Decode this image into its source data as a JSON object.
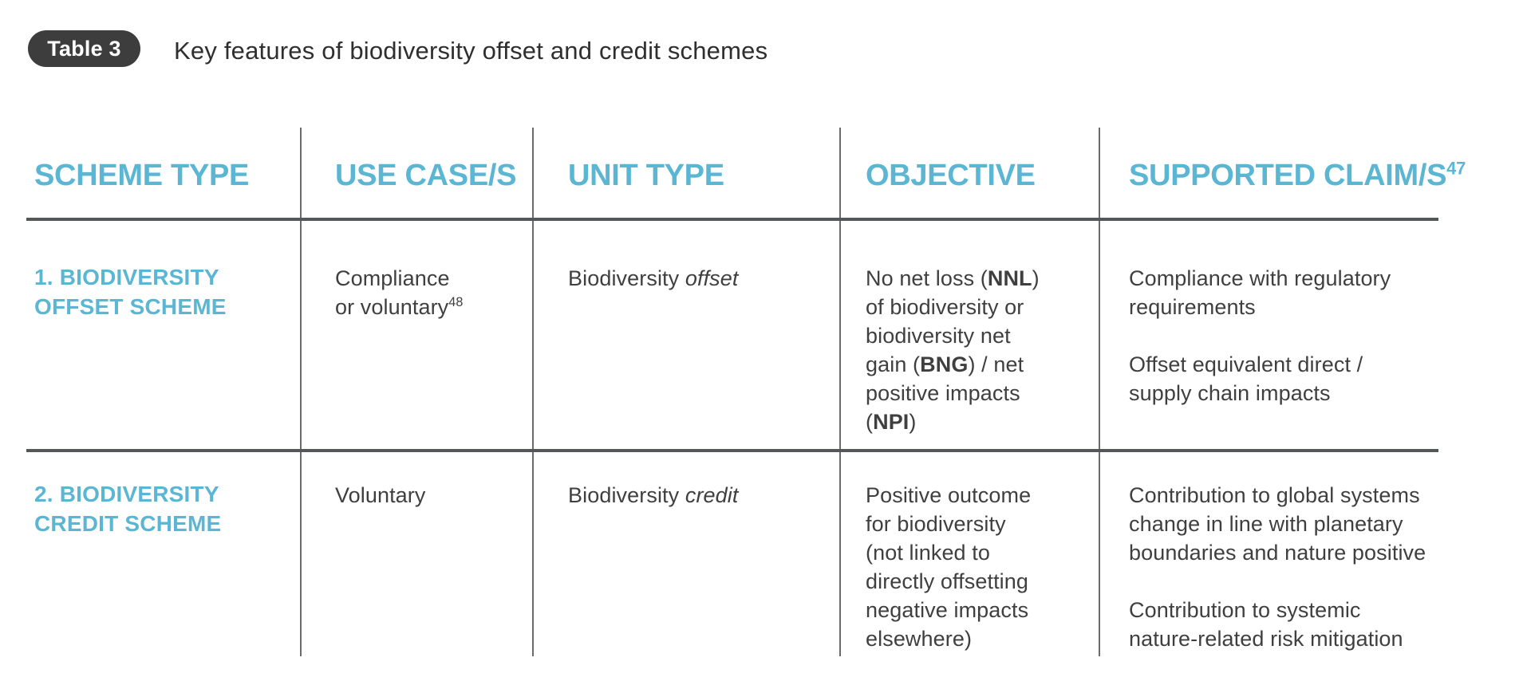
{
  "caption": {
    "badge": "Table 3",
    "title": "Key features of biodiversity offset and credit schemes"
  },
  "colors": {
    "accent": "#5BB6D4",
    "body_text": "#3F3F3F",
    "badge_bg": "#3D3D3D",
    "v_line": "#6B6B6B",
    "h_line": "#54565A"
  },
  "table": {
    "columns": [
      {
        "label": "SCHEME TYPE",
        "sup": ""
      },
      {
        "label": "USE CASE/S",
        "sup": ""
      },
      {
        "label": "UNIT TYPE",
        "sup": ""
      },
      {
        "label": "OBJECTIVE",
        "sup": ""
      },
      {
        "label": "SUPPORTED CLAIM/S",
        "sup": "47"
      }
    ],
    "rows": [
      {
        "cells": {
          "scheme_type": [
            {
              "t": "1. BIODIVERSITY\nOFFSET SCHEME"
            }
          ],
          "use_case": [
            {
              "t": "Compliance\nor voluntary"
            },
            {
              "t": "48",
              "sup": true
            }
          ],
          "unit_type": [
            {
              "t": "Biodiversity "
            },
            {
              "t": "offset",
              "i": true
            }
          ],
          "objective": [
            {
              "t": "No net loss ("
            },
            {
              "t": "NNL",
              "b": true
            },
            {
              "t": ")\nof biodiversity or\nbiodiversity net\ngain ("
            },
            {
              "t": "BNG",
              "b": true
            },
            {
              "t": ") / net\npositive impacts\n("
            },
            {
              "t": "NPI",
              "b": true
            },
            {
              "t": ")"
            }
          ],
          "supported_claims": [
            {
              "t": "Compliance with regulatory\nrequirements\n\nOffset equivalent direct /\nsupply chain impacts"
            }
          ]
        }
      },
      {
        "cells": {
          "scheme_type": [
            {
              "t": "2. BIODIVERSITY\nCREDIT SCHEME"
            }
          ],
          "use_case": [
            {
              "t": "Voluntary"
            }
          ],
          "unit_type": [
            {
              "t": "Biodiversity "
            },
            {
              "t": "credit",
              "i": true
            }
          ],
          "objective": [
            {
              "t": "Positive outcome\nfor biodiversity\n(not linked to\ndirectly offsetting\nnegative impacts\nelsewhere)"
            }
          ],
          "supported_claims": [
            {
              "t": "Contribution to global systems\nchange in line with planetary\nboundaries and nature positive\n\nContribution to systemic\nnature-related risk mitigation"
            }
          ]
        }
      }
    ]
  }
}
